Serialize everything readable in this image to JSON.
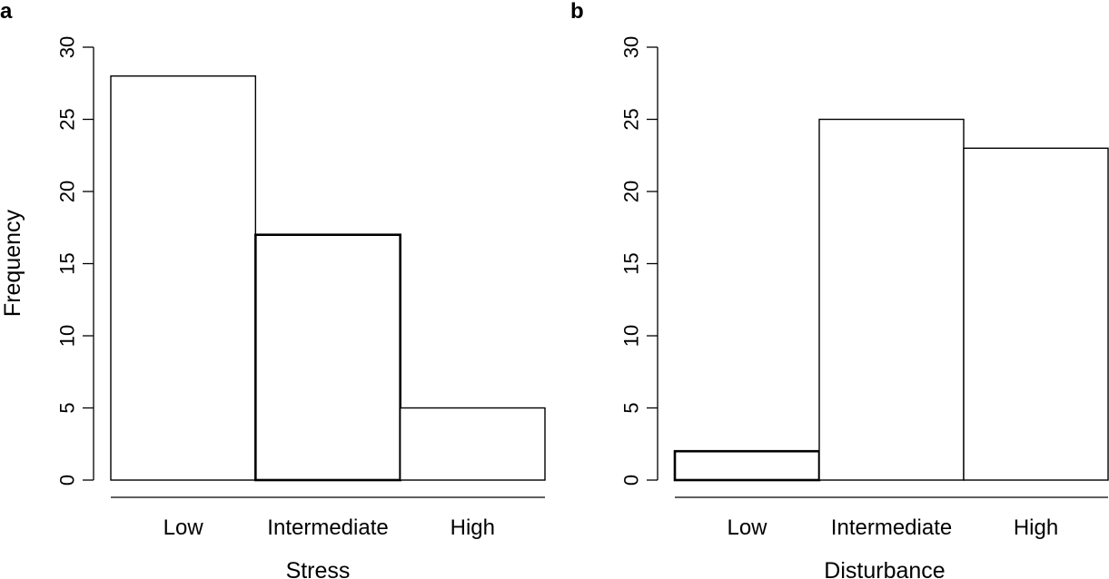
{
  "chart_data": [
    {
      "panel_label": "a",
      "type": "bar",
      "categories": [
        "Low",
        "Intermediate",
        "High"
      ],
      "values": [
        28,
        17,
        5
      ],
      "xlabel": "Stress",
      "ylabel": "Frequency",
      "ylim": [
        0,
        30
      ],
      "yticks": [
        "0",
        "5",
        "10",
        "15",
        "20",
        "25",
        "30"
      ],
      "grid": false,
      "emphasized_bar": "Intermediate"
    },
    {
      "panel_label": "b",
      "type": "bar",
      "categories": [
        "Low",
        "Intermediate",
        "High"
      ],
      "values": [
        2,
        25,
        23
      ],
      "xlabel": "Disturbance",
      "ylabel": "",
      "ylim": [
        0,
        30
      ],
      "yticks": [
        "0",
        "5",
        "10",
        "15",
        "20",
        "25",
        "30"
      ],
      "grid": false,
      "emphasized_bar": "Low"
    }
  ]
}
